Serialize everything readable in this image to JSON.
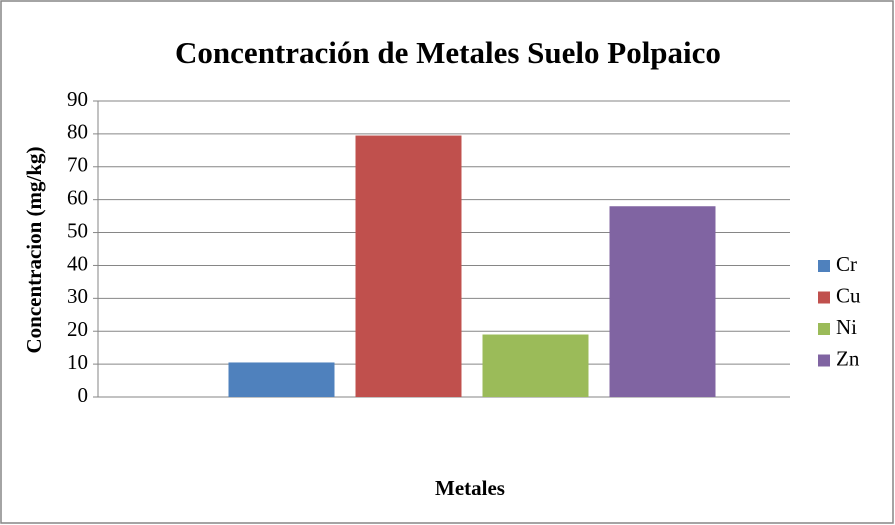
{
  "chart_data": {
    "type": "bar",
    "title": "Concentración de Metales Suelo Polpaico",
    "x_label": "Metales",
    "y_label": "Concentracion (mg/kg)",
    "categories": [
      null
    ],
    "series": [
      {
        "name": "Cr",
        "color": "#4f81bd",
        "values": [
          10.5
        ]
      },
      {
        "name": "Cu",
        "color": "#c0504d",
        "values": [
          79.5
        ]
      },
      {
        "name": "Ni",
        "color": "#9bbb59",
        "values": [
          19
        ]
      },
      {
        "name": "Zn",
        "color": "#8064a2",
        "values": [
          58
        ]
      }
    ],
    "ylim": [
      0,
      90
    ],
    "yticks": [
      0,
      10,
      20,
      30,
      40,
      50,
      60,
      70,
      80,
      90
    ],
    "grid": true,
    "legend": "right"
  }
}
